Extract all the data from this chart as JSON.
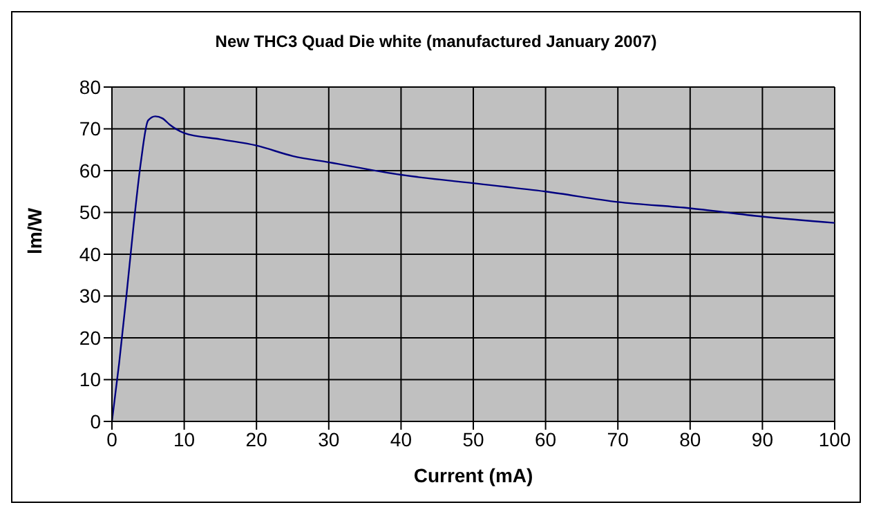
{
  "chart_data": {
    "type": "line",
    "title": "New THC3 Quad Die white (manufactured January 2007)",
    "xlabel": "Current (mA)",
    "ylabel": "lm/W",
    "x": [
      0,
      1,
      2,
      3,
      4,
      5,
      6,
      7,
      8,
      10,
      15,
      20,
      25,
      30,
      40,
      50,
      60,
      70,
      80,
      90,
      100
    ],
    "series": [
      {
        "color": "#000080",
        "values": [
          0,
          14,
          30,
          47,
          62,
          72,
          73,
          72.5,
          71,
          69,
          67.5,
          66,
          63.5,
          62,
          59,
          57,
          55,
          52.5,
          51,
          49,
          47.5
        ]
      }
    ],
    "xlim": [
      0,
      100
    ],
    "xticks": [
      0,
      10,
      20,
      30,
      40,
      50,
      60,
      70,
      80,
      90,
      100
    ],
    "ylim": [
      0,
      80
    ],
    "yticks": [
      0,
      10,
      20,
      30,
      40,
      50,
      60,
      70,
      80
    ],
    "grid": true,
    "legend": false,
    "marker": "none",
    "line_style": "solid"
  }
}
